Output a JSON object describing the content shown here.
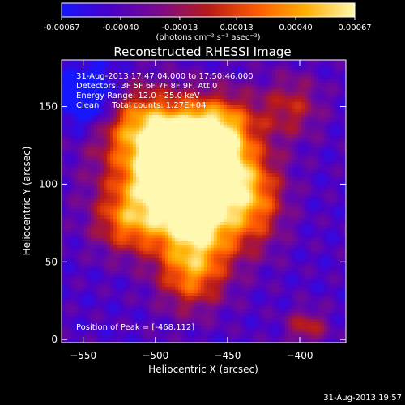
{
  "colorbar": {
    "ticks": [
      "-0.00067",
      "-0.00040",
      "-0.00013",
      "0.00013",
      "0.00040",
      "0.00067"
    ],
    "tick_values": [
      -0.00067,
      -0.0004,
      -0.00013,
      0.00013,
      0.0004,
      0.00067
    ],
    "range": [
      -0.00067,
      0.00067
    ],
    "units": "(photons cm⁻² s⁻¹ asec⁻²)",
    "colors": [
      "#1616ff",
      "#4a00c8",
      "#7a0a8a",
      "#b81a1a",
      "#ff5a00",
      "#ffb000",
      "#fff8b0"
    ]
  },
  "chart_data": {
    "type": "heatmap",
    "title": "Reconstructed RHESSI Image",
    "xlabel": "Heliocentric X (arcsec)",
    "ylabel": "Heliocentric Y (arcsec)",
    "xlim": [
      -565,
      -368
    ],
    "ylim": [
      -2,
      180
    ],
    "x_ticks": [
      -550,
      -500,
      -450,
      -400
    ],
    "y_ticks": [
      0,
      50,
      100,
      150
    ],
    "peak": {
      "x": -468,
      "y": 112
    },
    "blobs": [
      {
        "x": -484,
        "y": 106,
        "sx": 30,
        "sy": 22,
        "a": 0.98
      },
      {
        "x": -470,
        "y": 114,
        "sx": 18,
        "sy": 16,
        "a": 0.95
      },
      {
        "x": -510,
        "y": 140,
        "sx": 22,
        "sy": 16,
        "a": 0.5
      },
      {
        "x": -455,
        "y": 140,
        "sx": 20,
        "sy": 14,
        "a": 0.45
      },
      {
        "x": -470,
        "y": 72,
        "sx": 22,
        "sy": 20,
        "a": 0.6
      },
      {
        "x": -475,
        "y": 40,
        "sx": 16,
        "sy": 16,
        "a": 0.42
      },
      {
        "x": -520,
        "y": 75,
        "sx": 16,
        "sy": 14,
        "a": 0.4
      },
      {
        "x": -430,
        "y": 90,
        "sx": 14,
        "sy": 20,
        "a": 0.4
      },
      {
        "x": -405,
        "y": 150,
        "sx": 14,
        "sy": 14,
        "a": 0.3
      },
      {
        "x": -395,
        "y": 8,
        "sx": 10,
        "sy": 8,
        "a": 0.32
      }
    ],
    "blue_zone": {
      "x": -545,
      "y": 155,
      "sx": 14,
      "sy": 14,
      "a": -0.45
    }
  },
  "annotations": {
    "line1": "31-Aug-2013 17:47:04.000 to 17:50:46.000",
    "line2": "Detectors: 3F 5F 6F 7F 8F 9F, Att 0",
    "line3": "Energy Range: 12.0 - 25.0 keV",
    "line4": "Clean     Total counts: 1.27E+04",
    "peak_label": "Position of Peak = [-468,112]"
  },
  "footer": {
    "timestamp": "31-Aug-2013 19:57"
  }
}
